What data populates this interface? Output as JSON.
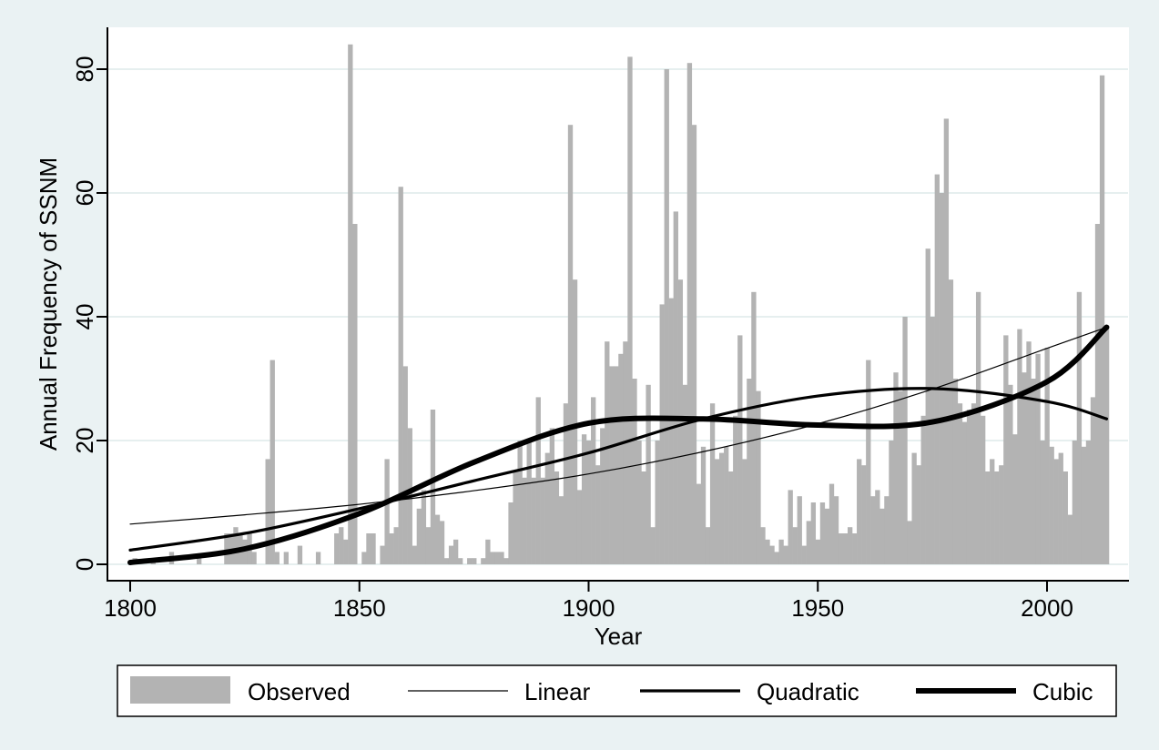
{
  "chart_data": {
    "type": "bar",
    "title": "",
    "xlabel": "Year",
    "ylabel": "Annual Frequency of SSNM",
    "xlim": [
      1800,
      2013
    ],
    "ylim": [
      0,
      86
    ],
    "x_ticks": [
      1800,
      1850,
      1900,
      1950,
      2000
    ],
    "y_ticks": [
      0,
      20,
      40,
      60,
      80
    ],
    "grid": "horizontal",
    "legend_position": "bottom",
    "colors": {
      "background": "#eaf2f3",
      "plot_area": "#ffffff",
      "bars": "#b3b3b3",
      "lines": "#000000",
      "grid": "#e6efef"
    },
    "bars": {
      "name": "Observed",
      "x": [
        1801,
        1805,
        1809,
        1815,
        1821,
        1822,
        1823,
        1824,
        1825,
        1826,
        1827,
        1830,
        1831,
        1832,
        1834,
        1837,
        1841,
        1845,
        1846,
        1847,
        1848,
        1849,
        1851,
        1852,
        1853,
        1855,
        1856,
        1857,
        1858,
        1859,
        1860,
        1861,
        1862,
        1863,
        1864,
        1865,
        1866,
        1867,
        1868,
        1869,
        1870,
        1871,
        1872,
        1874,
        1875,
        1877,
        1878,
        1879,
        1880,
        1881,
        1882,
        1883,
        1884,
        1885,
        1886,
        1887,
        1888,
        1889,
        1890,
        1891,
        1892,
        1893,
        1894,
        1895,
        1896,
        1897,
        1898,
        1899,
        1900,
        1901,
        1902,
        1903,
        1904,
        1905,
        1906,
        1907,
        1908,
        1909,
        1910,
        1911,
        1912,
        1913,
        1914,
        1915,
        1916,
        1917,
        1918,
        1919,
        1920,
        1921,
        1922,
        1923,
        1924,
        1925,
        1926,
        1927,
        1928,
        1929,
        1930,
        1931,
        1932,
        1933,
        1934,
        1935,
        1936,
        1937,
        1938,
        1939,
        1940,
        1941,
        1942,
        1943,
        1944,
        1945,
        1946,
        1947,
        1948,
        1949,
        1950,
        1951,
        1952,
        1953,
        1954,
        1955,
        1956,
        1957,
        1958,
        1959,
        1960,
        1961,
        1962,
        1963,
        1964,
        1965,
        1966,
        1967,
        1968,
        1969,
        1970,
        1971,
        1972,
        1973,
        1974,
        1975,
        1976,
        1977,
        1978,
        1979,
        1980,
        1981,
        1982,
        1983,
        1984,
        1985,
        1986,
        1987,
        1988,
        1989,
        1990,
        1991,
        1992,
        1993,
        1994,
        1995,
        1996,
        1997,
        1998,
        1999,
        2000,
        2001,
        2002,
        2003,
        2004,
        2005,
        2006,
        2007,
        2008,
        2009,
        2010,
        2011,
        2012,
        2013
      ],
      "values": [
        1,
        1,
        2,
        1,
        5,
        5,
        6,
        5,
        4,
        5,
        2,
        17,
        33,
        2,
        2,
        3,
        2,
        5,
        6,
        4,
        84,
        55,
        2,
        5,
        5,
        3,
        17,
        5,
        6,
        61,
        32,
        22,
        3,
        9,
        12,
        6,
        25,
        8,
        7,
        1,
        3,
        4,
        1,
        1,
        1,
        1,
        4,
        2,
        2,
        2,
        1,
        10,
        15,
        20,
        14,
        20,
        14,
        27,
        14,
        18,
        22,
        15,
        11,
        26,
        71,
        46,
        12,
        21,
        20,
        27,
        16,
        22,
        36,
        32,
        32,
        34,
        36,
        82,
        30,
        20,
        15,
        29,
        6,
        20,
        42,
        80,
        43,
        57,
        46,
        29,
        81,
        71,
        13,
        19,
        6,
        26,
        17,
        18,
        19,
        15,
        24,
        37,
        17,
        30,
        44,
        28,
        6,
        4,
        3,
        2,
        4,
        3,
        12,
        6,
        11,
        3,
        7,
        10,
        4,
        10,
        9,
        13,
        11,
        5,
        5,
        6,
        5,
        17,
        16,
        33,
        11,
        12,
        9,
        11,
        20,
        31,
        28,
        40,
        7,
        18,
        16,
        24,
        51,
        40,
        63,
        60,
        72,
        46,
        30,
        26,
        23,
        25,
        26,
        44,
        24,
        15,
        17,
        15,
        16,
        37,
        29,
        21,
        38,
        31,
        36,
        30,
        34,
        20,
        35,
        19,
        17,
        18,
        15,
        8,
        20,
        44,
        19,
        20,
        27,
        55,
        79,
        38
      ]
    },
    "series": [
      {
        "name": "Linear",
        "stroke_width": 1.2,
        "x": [
          1800,
          1825,
          1850,
          1875,
          1900,
          1925,
          1950,
          1975,
          2000,
          2013
        ],
        "y": [
          6.5,
          8.0,
          9.7,
          11.9,
          14.6,
          18.2,
          22.7,
          28.3,
          34.9,
          38.3
        ]
      },
      {
        "name": "Quadratic",
        "stroke_width": 3.2,
        "x": [
          1800,
          1825,
          1850,
          1875,
          1900,
          1925,
          1950,
          1975,
          2000,
          2013
        ],
        "y": [
          2.3,
          5.0,
          9.0,
          13.5,
          18.0,
          23.5,
          27.2,
          28.4,
          26.3,
          23.5
        ]
      },
      {
        "name": "Cubic",
        "stroke_width": 6,
        "x": [
          1800,
          1825,
          1850,
          1875,
          1900,
          1925,
          1950,
          1975,
          2000,
          2013
        ],
        "y": [
          0.3,
          2.5,
          8.2,
          16.5,
          22.8,
          23.5,
          22.5,
          23.0,
          29.5,
          38.3
        ]
      }
    ],
    "legend": [
      {
        "label": "Observed",
        "kind": "bar"
      },
      {
        "label": "Linear",
        "kind": "line",
        "stroke_width": 1.2
      },
      {
        "label": "Quadratic",
        "kind": "line",
        "stroke_width": 3.2
      },
      {
        "label": "Cubic",
        "kind": "line",
        "stroke_width": 6
      }
    ]
  }
}
